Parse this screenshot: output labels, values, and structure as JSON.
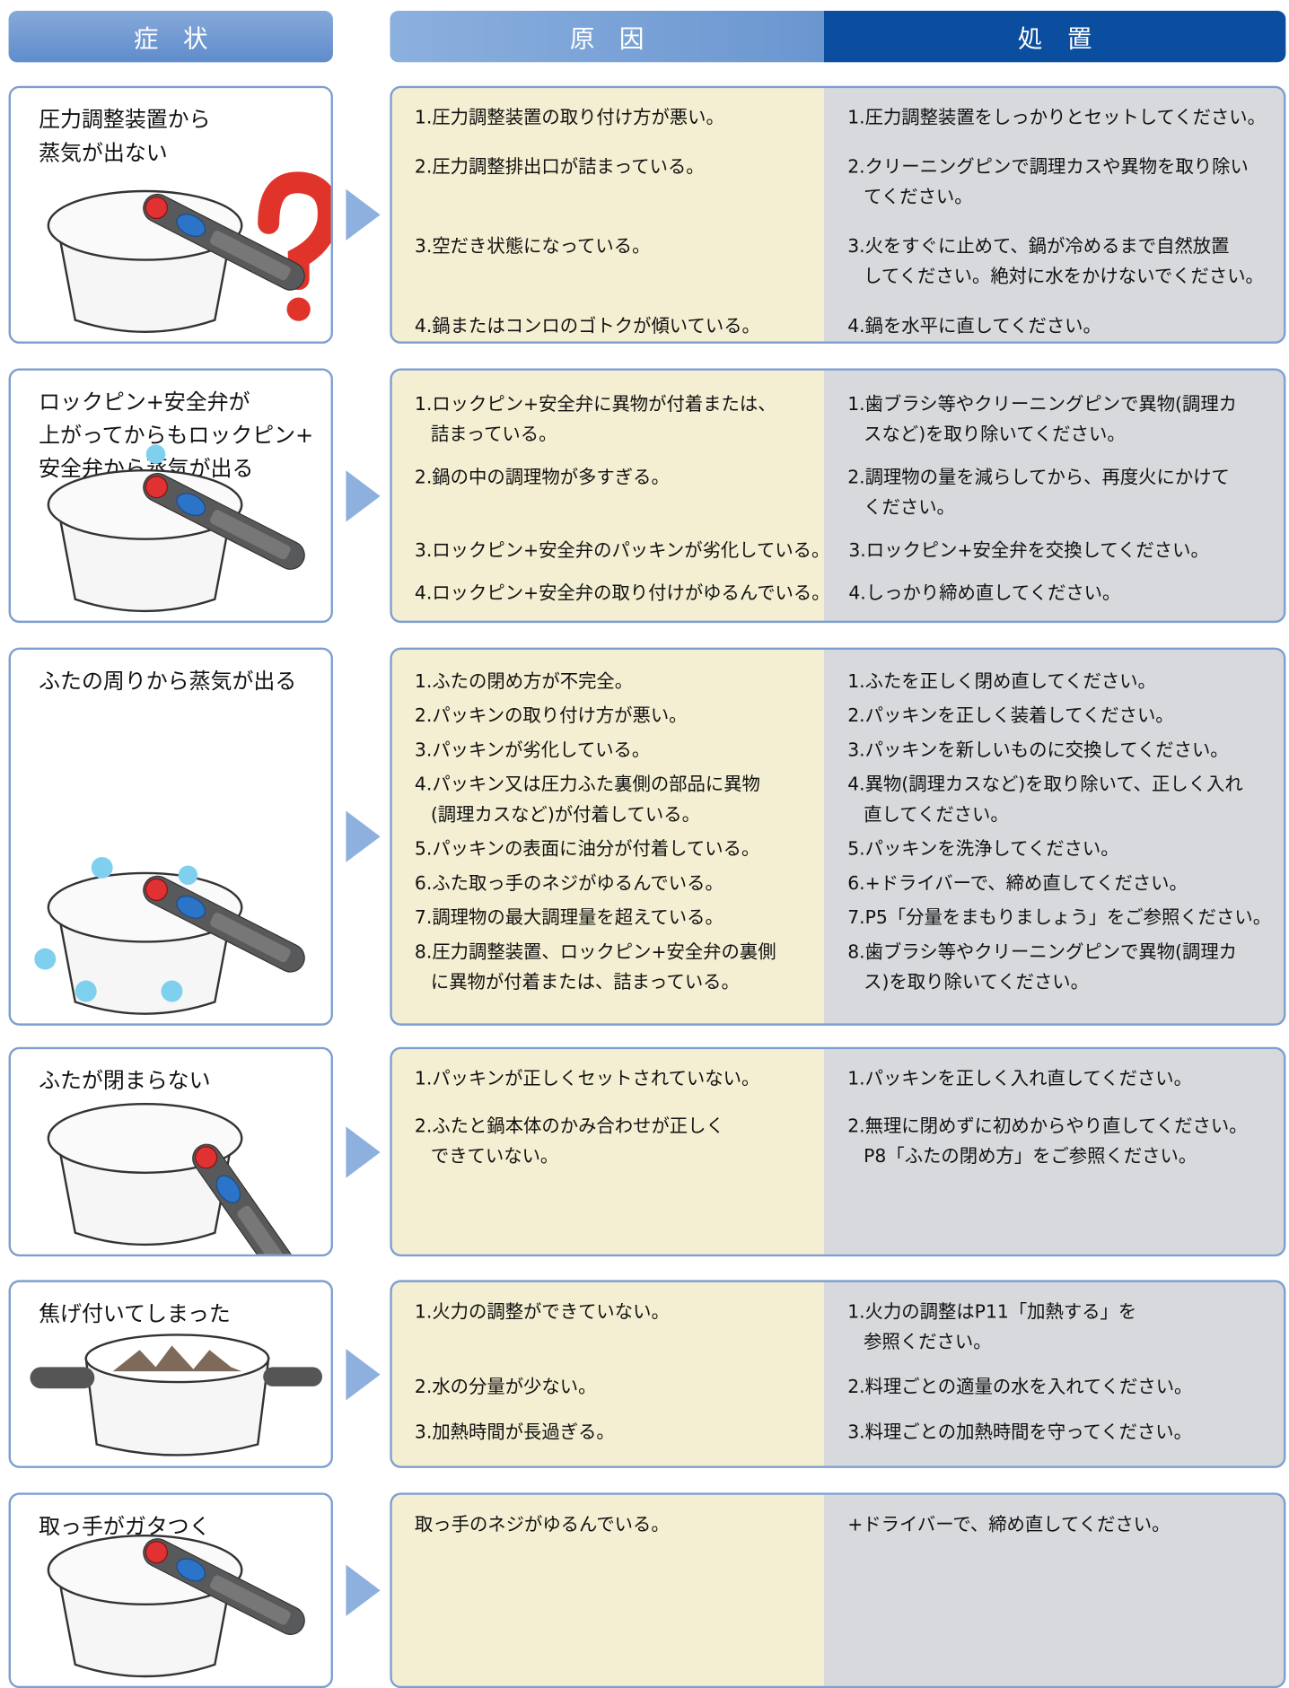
{
  "header": {
    "symptom": "症　状",
    "cause": "原　因",
    "remedy": "処　置"
  },
  "rows": [
    {
      "symptom": [
        "圧力調整装置から",
        "蒸気が出ない"
      ],
      "items": [
        {
          "cause": [
            "1.圧力調整装置の取り付け方が悪い。"
          ],
          "remedy": [
            "1.圧力調整装置をしっかりとセットしてください。"
          ]
        },
        {
          "cause": [
            "2.圧力調整排出口が詰まっている。"
          ],
          "remedy": [
            "2.クリーニングピンで調理カスや異物を取り除い",
            "てください。"
          ]
        },
        {
          "cause": [
            "3.空だき状態になっている。"
          ],
          "remedy": [
            "3.火をすぐに止めて、鍋が冷めるまで自然放置",
            "してください。絶対に水をかけないでください。"
          ]
        },
        {
          "cause": [
            "4.鍋またはコンロのゴトクが傾いている。"
          ],
          "remedy": [
            "4.鍋を水平に直してください。"
          ]
        }
      ]
    },
    {
      "symptom": [
        "ロックピン+安全弁が",
        "上がってからもロックピン+",
        "安全弁から蒸気が出る"
      ],
      "items": [
        {
          "cause": [
            "1.ロックピン+安全弁に異物が付着または、",
            "詰まっている。"
          ],
          "remedy": [
            "1.歯ブラシ等やクリーニングピンで異物(調理カ",
            "スなど)を取り除いてください。"
          ]
        },
        {
          "cause": [
            "2.鍋の中の調理物が多すぎる。"
          ],
          "remedy": [
            "2.調理物の量を減らしてから、再度火にかけて",
            "ください。"
          ]
        },
        {
          "cause": [
            "3.ロックピン+安全弁のパッキンが劣化している。"
          ],
          "remedy": [
            "3.ロックピン+安全弁を交換してください。"
          ]
        },
        {
          "cause": [
            "4.ロックピン+安全弁の取り付けがゆるんでいる。"
          ],
          "remedy": [
            "4.しっかり締め直してください。"
          ]
        }
      ]
    },
    {
      "symptom": [
        "ふたの周りから蒸気が出る"
      ],
      "items": [
        {
          "cause": [
            "1.ふたの閉め方が不完全。"
          ],
          "remedy": [
            "1.ふたを正しく閉め直してください。"
          ]
        },
        {
          "cause": [
            "2.パッキンの取り付け方が悪い。"
          ],
          "remedy": [
            "2.パッキンを正しく装着してください。"
          ]
        },
        {
          "cause": [
            "3.パッキンが劣化している。"
          ],
          "remedy": [
            "3.パッキンを新しいものに交換してください。"
          ]
        },
        {
          "cause": [
            "4.パッキン又は圧力ふた裏側の部品に異物",
            "(調理カスなど)が付着している。"
          ],
          "remedy": [
            "4.異物(調理カスなど)を取り除いて、正しく入れ",
            "直してください。"
          ]
        },
        {
          "cause": [
            "5.パッキンの表面に油分が付着している。"
          ],
          "remedy": [
            "5.パッキンを洗浄してください。"
          ]
        },
        {
          "cause": [
            "6.ふた取っ手のネジがゆるんでいる。"
          ],
          "remedy": [
            "6.+ドライバーで、締め直してください。"
          ]
        },
        {
          "cause": [
            "7.調理物の最大調理量を超えている。"
          ],
          "remedy": [
            "7.P5「分量をまもりましょう」をご参照ください。"
          ]
        },
        {
          "cause": [
            "8.圧力調整装置、ロックピン+安全弁の裏側",
            "に異物が付着または、詰まっている。"
          ],
          "remedy": [
            "8.歯ブラシ等やクリーニングピンで異物(調理カ",
            "ス)を取り除いてください。"
          ]
        }
      ]
    },
    {
      "symptom": [
        "ふたが閉まらない"
      ],
      "items": [
        {
          "cause": [
            "1.パッキンが正しくセットされていない。"
          ],
          "remedy": [
            "1.パッキンを正しく入れ直してください。"
          ]
        },
        {
          "cause": [
            "2.ふたと鍋本体のかみ合わせが正しく",
            "できていない。"
          ],
          "remedy": [
            "2.無理に閉めずに初めからやり直してください。",
            "P8「ふたの閉め方」をご参照ください。"
          ]
        }
      ]
    },
    {
      "symptom": [
        "焦げ付いてしまった"
      ],
      "items": [
        {
          "cause": [
            "1.火力の調整ができていない。"
          ],
          "remedy": [
            "1.火力の調整はP11「加熱する」を",
            "参照ください。"
          ]
        },
        {
          "cause": [
            "2.水の分量が少ない。"
          ],
          "remedy": [
            "2.料理ごとの適量の水を入れてください。"
          ]
        },
        {
          "cause": [
            "3.加熱時間が長過ぎる。"
          ],
          "remedy": [
            "3.料理ごとの加熱時間を守ってください。"
          ]
        }
      ]
    },
    {
      "symptom": [
        "取っ手がガタつく"
      ],
      "items": [
        {
          "cause": [
            "取っ手のネジがゆるんでいる。"
          ],
          "remedy": [
            "+ドライバーで、締め直してください。"
          ]
        }
      ]
    }
  ]
}
